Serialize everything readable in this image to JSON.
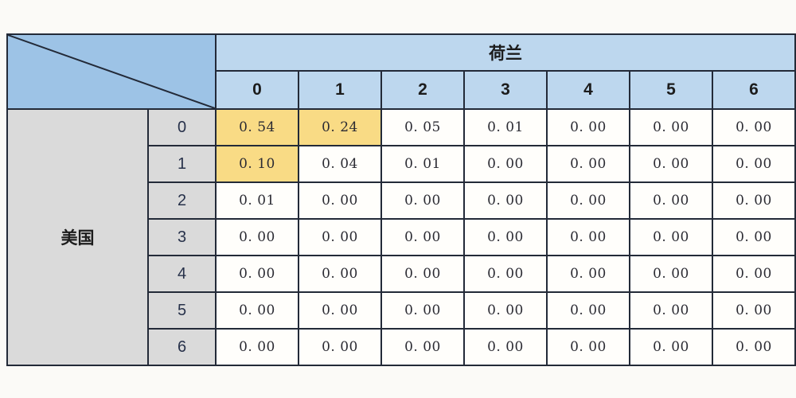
{
  "table": {
    "col_group_label": "荷兰",
    "row_group_label": "美国",
    "col_headers": [
      "0",
      "1",
      "2",
      "3",
      "4",
      "5",
      "6"
    ],
    "row_headers": [
      "0",
      "1",
      "2",
      "3",
      "4",
      "5",
      "6"
    ]
  },
  "colors": {
    "corner_blue": "#9dc3e6",
    "header_blue": "#bdd7ee",
    "row_header_gray": "#dadada",
    "highlight_yellow": "#f9db85",
    "grid_line": "#232a38",
    "cell_white": "#fffefb",
    "page_bg": "#fbfaf7"
  },
  "chart_data": {
    "type": "table",
    "title": "",
    "col_group_label": "荷兰",
    "row_group_label": "美国",
    "columns": [
      0,
      1,
      2,
      3,
      4,
      5,
      6
    ],
    "rows": [
      0,
      1,
      2,
      3,
      4,
      5,
      6
    ],
    "matrix": [
      [
        0.54,
        0.24,
        0.05,
        0.01,
        0.0,
        0.0,
        0.0
      ],
      [
        0.1,
        0.04,
        0.01,
        0.0,
        0.0,
        0.0,
        0.0
      ],
      [
        0.01,
        0.0,
        0.0,
        0.0,
        0.0,
        0.0,
        0.0
      ],
      [
        0.0,
        0.0,
        0.0,
        0.0,
        0.0,
        0.0,
        0.0
      ],
      [
        0.0,
        0.0,
        0.0,
        0.0,
        0.0,
        0.0,
        0.0
      ],
      [
        0.0,
        0.0,
        0.0,
        0.0,
        0.0,
        0.0,
        0.0
      ],
      [
        0.0,
        0.0,
        0.0,
        0.0,
        0.0,
        0.0,
        0.0
      ]
    ],
    "highlighted_cells": [
      [
        0,
        0
      ],
      [
        0,
        1
      ],
      [
        1,
        0
      ]
    ],
    "value_format": "two decimals",
    "legend_position": "none",
    "grid": true
  }
}
